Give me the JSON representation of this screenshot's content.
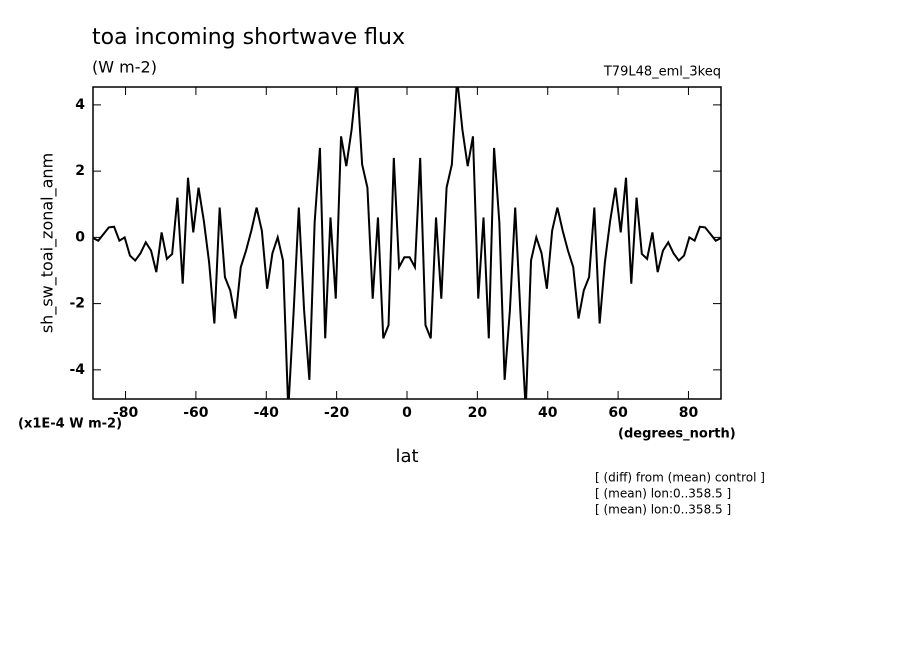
{
  "chart_data": {
    "type": "line",
    "title": "toa incoming shortwave flux",
    "units": "(W m-2)",
    "run_label": "T79L48_eml_3keq",
    "y_label": "sh_sw_toai_zonal_anm",
    "y_scale_label": "(x1E-4 W m-2)",
    "x_label": "lat",
    "x_units": "(degrees_north)",
    "notes": [
      "[ (diff) from (mean) control ]",
      "[ (mean) lon:0..358.5 ]",
      "[ (mean) lon:0..358.5 ]"
    ],
    "x": [
      -89.25,
      -87.75,
      -86.25,
      -84.75,
      -83.25,
      -81.75,
      -80.25,
      -78.75,
      -77.25,
      -75.75,
      -74.25,
      -72.75,
      -71.25,
      -69.75,
      -68.25,
      -66.75,
      -65.25,
      -63.75,
      -62.25,
      -60.75,
      -59.25,
      -57.75,
      -56.25,
      -54.75,
      -53.25,
      -51.75,
      -50.25,
      -48.75,
      -47.25,
      -45.75,
      -44.25,
      -42.75,
      -41.25,
      -39.75,
      -38.25,
      -36.75,
      -35.25,
      -33.75,
      -32.25,
      -30.75,
      -29.25,
      -27.75,
      -26.25,
      -24.75,
      -23.25,
      -21.75,
      -20.25,
      -18.75,
      -17.25,
      -15.75,
      -14.25,
      -12.75,
      -11.25,
      -9.75,
      -8.25,
      -6.75,
      -5.25,
      -3.75,
      -2.25,
      -0.75,
      0.75,
      2.25,
      3.75,
      5.25,
      6.75,
      8.25,
      9.75,
      11.25,
      12.75,
      14.25,
      15.75,
      17.25,
      18.75,
      20.25,
      21.75,
      23.25,
      24.75,
      26.25,
      27.75,
      29.25,
      30.75,
      32.25,
      33.75,
      35.25,
      36.75,
      38.25,
      39.75,
      41.25,
      42.75,
      44.25,
      45.75,
      47.25,
      48.75,
      50.25,
      51.75,
      53.25,
      54.75,
      56.25,
      57.75,
      59.25,
      60.75,
      62.25,
      63.75,
      65.25,
      66.75,
      68.25,
      69.75,
      71.25,
      72.75,
      74.25,
      75.75,
      77.25,
      78.75,
      80.25,
      81.75,
      83.25,
      84.75,
      86.25,
      87.75,
      89.25
    ],
    "series": [
      {
        "color": "#000000",
        "values": [
          -0.02,
          -0.1,
          0.1,
          0.3,
          0.32,
          -0.1,
          0,
          -0.55,
          -0.7,
          -0.48,
          -0.15,
          -0.4,
          -1.05,
          0.15,
          -0.65,
          -0.5,
          1.2,
          -1.4,
          1.8,
          0.15,
          1.5,
          0.5,
          -0.75,
          -2.6,
          0.9,
          -1.2,
          -1.6,
          -2.45,
          -0.9,
          -0.4,
          0.2,
          0.9,
          0.2,
          -1.55,
          -0.48,
          0,
          -0.7,
          -5.2,
          -2.3,
          0.9,
          -2.2,
          -4.3,
          0.45,
          2.7,
          -3.05,
          0.6,
          -1.85,
          3.05,
          2.15,
          3.25,
          4.8,
          2.2,
          1.5,
          -1.85,
          0.6,
          -3.05,
          -2.65,
          2.4,
          -0.9,
          -0.6,
          -0.6,
          -0.9,
          2.4,
          -2.65,
          -3.05,
          0.6,
          -1.85,
          1.5,
          2.2,
          4.8,
          3.25,
          2.15,
          3.05,
          -1.85,
          0.6,
          -3.05,
          2.7,
          0.45,
          -4.3,
          -2.2,
          0.9,
          -2.3,
          -5.2,
          -0.7,
          0,
          -0.48,
          -1.55,
          0.2,
          0.9,
          0.2,
          -0.4,
          -0.9,
          -2.45,
          -1.6,
          -1.2,
          0.9,
          -2.6,
          -0.75,
          0.5,
          1.5,
          0.15,
          1.8,
          -1.4,
          1.2,
          -0.5,
          -0.65,
          0.15,
          -1.05,
          -0.4,
          -0.15,
          -0.48,
          -0.7,
          -0.55,
          0,
          -0.1,
          0.32,
          0.3,
          0.1,
          -0.1,
          -0.02
        ]
      }
    ],
    "xlim": [
      -89.25,
      89.25
    ],
    "ylim": [
      -4.88,
      4.54
    ],
    "xticks": [
      -80,
      -60,
      -40,
      -20,
      0,
      20,
      40,
      60,
      80
    ],
    "yticks": [
      -4,
      -2,
      0,
      2,
      4
    ]
  }
}
